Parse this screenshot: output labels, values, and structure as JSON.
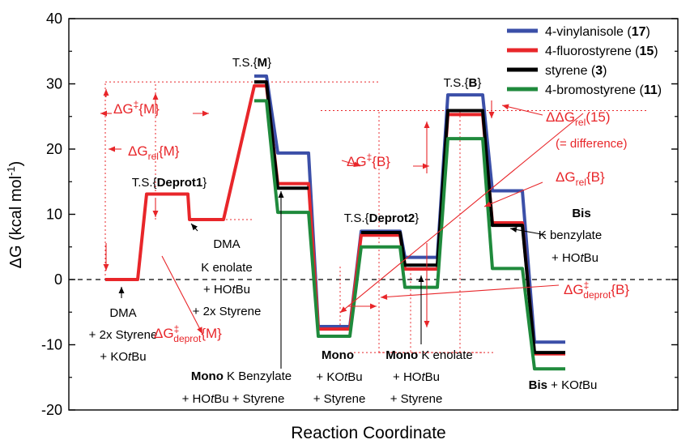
{
  "chart_data": {
    "type": "line",
    "title": "",
    "xlabel": "Reaction Coordinate",
    "ylabel_main": "ΔG (kcal mol",
    "ylabel_sup": "-1",
    "ylabel_close": ")",
    "ylim": [
      -20,
      40
    ],
    "yticks": [
      -20,
      -10,
      0,
      10,
      20,
      30,
      40
    ],
    "legend_position": "top-right",
    "stage_x": [
      0,
      1,
      2,
      3,
      4,
      5,
      6,
      7,
      8,
      9,
      10
    ],
    "series": [
      {
        "key": "blue",
        "name": "4-vinylanisole",
        "compound": "17",
        "color": "#3b4fa8",
        "values": [
          null,
          null,
          null,
          31.2,
          19.4,
          -7.2,
          7.4,
          3.4,
          28.3,
          13.6,
          -9.6
        ]
      },
      {
        "key": "red",
        "name": "4-fluorostyrene",
        "compound": "15",
        "color": "#e8262a",
        "values": [
          0,
          13.1,
          9.2,
          29.7,
          14.7,
          -7.6,
          6.8,
          1.6,
          25.3,
          8.7,
          -11.4
        ]
      },
      {
        "key": "black",
        "name": "styrene",
        "compound": "3",
        "color": "#000000",
        "values": [
          null,
          null,
          null,
          30.3,
          14.0,
          null,
          7.2,
          2.2,
          25.9,
          8.3,
          -11.2
        ]
      },
      {
        "key": "green",
        "name": "4-bromostyrene",
        "compound": "11",
        "color": "#1f8a3c",
        "values": [
          null,
          null,
          null,
          27.4,
          10.3,
          -8.7,
          5.0,
          -1.2,
          21.6,
          1.7,
          -13.7
        ]
      }
    ],
    "annotations": {
      "ts_deprot1": {
        "pre": "T.S.{",
        "bold": "Deprot1",
        "post": "}"
      },
      "ts_m": {
        "pre": "T.S.{",
        "bold": "M",
        "post": "}"
      },
      "ts_deprot2": {
        "pre": "T.S.{",
        "bold": "Deprot2",
        "post": "}"
      },
      "ts_b": {
        "pre": "T.S.{",
        "bold": "B",
        "post": "}"
      },
      "start_1": "DMA",
      "start_2": "+ 2x Styrene",
      "start_3": "+ KO",
      "start_3_it": "t",
      "start_3_end": "Bu",
      "enolate_1": "DMA",
      "enolate_2": "K enolate",
      "enolate_3": "+ HO",
      "enolate_3_it": "t",
      "enolate_3_end": "Bu",
      "enolate_4": "+ 2x Styrene",
      "mono_benz_bold": "Mono",
      "mono_benz_rest": " K Benzylate",
      "mono_benz_2": "+ HO",
      "mono_benz_2_it": "t",
      "mono_benz_2_end": "Bu + Styrene",
      "mono_bold": "Mono",
      "mono_2": "+ KO",
      "mono_2_it": "t",
      "mono_2_end": "Bu",
      "mono_3": "+ Styrene",
      "mono_enol_bold": "Mono",
      "mono_enol_rest": " K enolate",
      "mono_enol_2": "+ HO",
      "mono_enol_2_it": "t",
      "mono_enol_2_end": "Bu",
      "mono_enol_3": "+ Styrene",
      "bis_bold": "Bis",
      "bis_2": "K benzylate",
      "bis_3": "+ HO",
      "bis_3_it": "t",
      "bis_3_end": "Bu",
      "bis_end_bold": "Bis",
      "bis_end_2": " + KO",
      "bis_end_2_it": "t",
      "bis_end_2_end": "Bu",
      "dg_m_pre": "ΔG",
      "dg_m_dagger": "‡",
      "dg_m_post": "{M}",
      "dgrel_m_pre": "ΔG",
      "dgrel_m_sub": "rel",
      "dgrel_m_post": "{M}",
      "dg_b_pre": "ΔG",
      "dg_b_dagger": "‡",
      "dg_b_post": "{B}",
      "ddg_pre": "ΔΔG",
      "ddg_sub": "rel",
      "ddg_post": "(15)",
      "ddg_note": "(= difference)",
      "dgrel_b_pre": "ΔG",
      "dgrel_b_sub": "rel",
      "dgrel_b_post": "{B}",
      "dgdep_b_pre": "ΔG",
      "dgdep_b_sup": "‡",
      "dgdep_b_sub": "deprot",
      "dgdep_b_post": "{B}",
      "dgdep_m_pre": "ΔG",
      "dgdep_m_sup": "‡",
      "dgdep_m_sub": "deprot",
      "dgdep_m_post": "{M}"
    }
  }
}
